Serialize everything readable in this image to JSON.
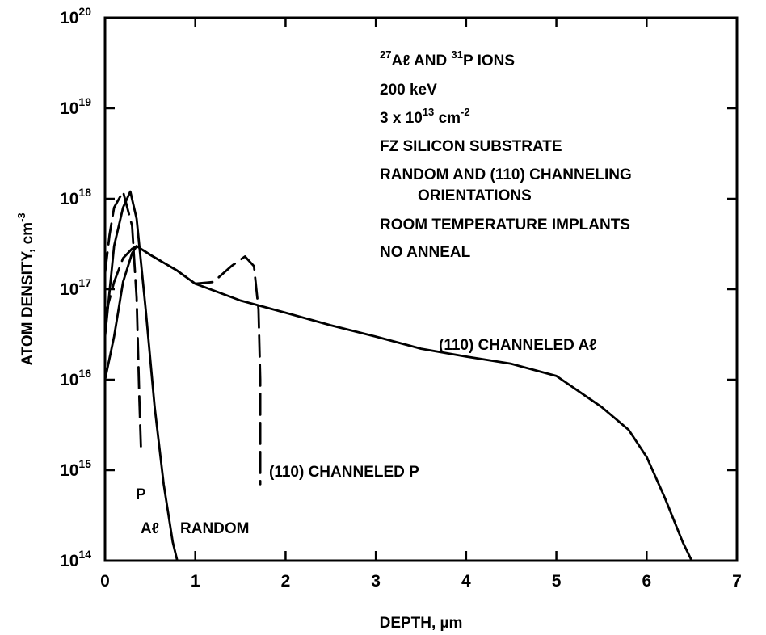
{
  "chart_data": {
    "type": "line",
    "title": "",
    "xlabel": "DEPTH, µm",
    "ylabel": "ATOM DENSITY, cm",
    "ylabel_sup": "-3",
    "xlim": [
      0,
      7
    ],
    "ylim": [
      100000000000000.0,
      1e+20
    ],
    "y_scale": "log",
    "grid": false,
    "x_ticks": [
      "0",
      "1",
      "2",
      "3",
      "4",
      "5",
      "6",
      "7"
    ],
    "y_ticks": [
      {
        "base": "10",
        "exp": "14"
      },
      {
        "base": "10",
        "exp": "15"
      },
      {
        "base": "10",
        "exp": "16"
      },
      {
        "base": "10",
        "exp": "17"
      },
      {
        "base": "10",
        "exp": "18"
      },
      {
        "base": "10",
        "exp": "19"
      },
      {
        "base": "10",
        "exp": "20"
      }
    ],
    "annotations": [
      {
        "id": "ions",
        "parts": [
          {
            "sup": "27"
          },
          {
            "t": "Aℓ AND "
          },
          {
            "sup": "31"
          },
          {
            "t": "P IONS"
          }
        ]
      },
      {
        "id": "energy",
        "parts": [
          {
            "t": "200 keV"
          }
        ]
      },
      {
        "id": "dose",
        "parts": [
          {
            "t": "3 x 10"
          },
          {
            "sup": "13"
          },
          {
            "t": " cm"
          },
          {
            "sup": "-2"
          }
        ]
      },
      {
        "id": "substrate",
        "parts": [
          {
            "t": "FZ SILICON SUBSTRATE"
          }
        ]
      },
      {
        "id": "orient1",
        "parts": [
          {
            "t": "RANDOM AND (110) CHANNELING"
          }
        ]
      },
      {
        "id": "orient2",
        "parts": [
          {
            "t": "ORIENTATIONS"
          }
        ]
      },
      {
        "id": "temp",
        "parts": [
          {
            "t": "ROOM TEMPERATURE IMPLANTS"
          }
        ]
      },
      {
        "id": "anneal",
        "parts": [
          {
            "t": "NO ANNEAL"
          }
        ]
      }
    ],
    "curve_labels": [
      {
        "id": "ch-al",
        "text": "(110) CHANNELED Aℓ"
      },
      {
        "id": "ch-p",
        "text": "(110) CHANNELED P"
      },
      {
        "id": "p-rand",
        "text": "P"
      },
      {
        "id": "al-rand",
        "text": "Aℓ"
      },
      {
        "id": "random",
        "text": "RANDOM"
      }
    ],
    "series": [
      {
        "id": "channeled-al",
        "style": "solid",
        "x": [
          0,
          0.1,
          0.2,
          0.3,
          0.35,
          0.5,
          0.8,
          1.0,
          1.5,
          2.0,
          2.5,
          3.0,
          3.5,
          4.0,
          4.5,
          5.0,
          5.5,
          5.8,
          6.0,
          6.2,
          6.4,
          6.5
        ],
        "y": [
          1e+16,
          3e+16,
          1.2e+17,
          2.5e+17,
          3e+17,
          2.4e+17,
          1.6e+17,
          1.15e+17,
          7.5e+16,
          5.5e+16,
          4e+16,
          3e+16,
          2.2e+16,
          1.8e+16,
          1.5e+16,
          1.1e+16,
          5000000000000000.0,
          2800000000000000.0,
          1400000000000000.0,
          500000000000000.0,
          160000000000000.0,
          100000000000000.0
        ]
      },
      {
        "id": "random-al",
        "style": "solid",
        "x": [
          0,
          0.1,
          0.2,
          0.28,
          0.35,
          0.45,
          0.55,
          0.65,
          0.75,
          0.8
        ],
        "y": [
          3e+16,
          3e+17,
          8e+17,
          1.2e+18,
          6e+17,
          6e+16,
          5000000000000000.0,
          700000000000000.0,
          160000000000000.0,
          100000000000000.0
        ]
      },
      {
        "id": "random-p",
        "style": "dashed",
        "x": [
          0,
          0.05,
          0.1,
          0.2,
          0.3,
          0.35,
          0.38,
          0.4
        ],
        "y": [
          1.5e+17,
          4e+17,
          8e+17,
          1.2e+18,
          5e+17,
          8e+16,
          6000000000000000.0,
          1500000000000000.0
        ]
      },
      {
        "id": "channeled-p",
        "style": "dashed",
        "x": [
          0,
          0.1,
          0.2,
          0.3,
          0.35,
          0.5,
          0.8,
          1.0,
          1.2,
          1.4,
          1.55,
          1.65,
          1.7,
          1.72,
          1.72,
          1.72
        ],
        "y": [
          5e+16,
          1.2e+17,
          2.2e+17,
          2.8e+17,
          3e+17,
          2.4e+17,
          1.6e+17,
          1.15e+17,
          1.2e+17,
          1.8e+17,
          2.3e+17,
          1.8e+17,
          6e+16,
          1e+16,
          2000000000000000.0,
          700000000000000.0
        ]
      }
    ]
  }
}
